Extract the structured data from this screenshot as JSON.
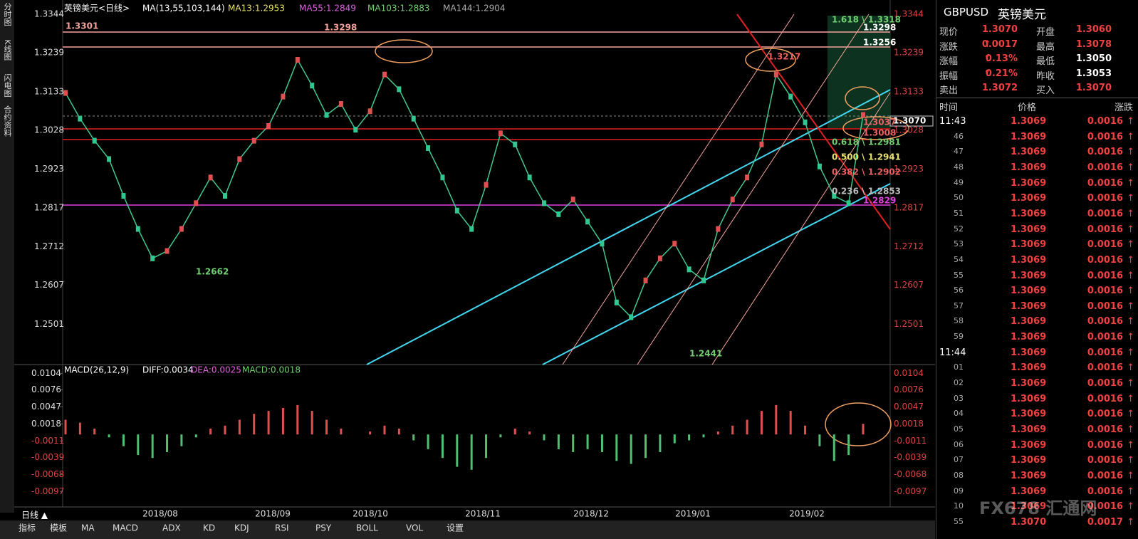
{
  "side_tabs": [
    "分时图",
    "K线图",
    "闪电图",
    "合约资料"
  ],
  "legend": {
    "symbol": "英镑美元<日线>",
    "ma": "MA(13,55,103,144)",
    "ma13": "MA13:1.2953",
    "ma55": "MA55:1.2849",
    "ma103": "MA103:1.2883",
    "ma144": "MA144:1.2904"
  },
  "price_chart": {
    "ylim": [
      1.2395,
      1.3344
    ],
    "yticks": [
      1.3344,
      1.3239,
      1.3133,
      1.3028,
      1.2923,
      1.2817,
      1.2712,
      1.2607,
      1.2501
    ],
    "closes": [
      1.313,
      1.306,
      1.3,
      1.295,
      1.285,
      1.276,
      1.268,
      1.27,
      1.276,
      1.283,
      1.29,
      1.285,
      1.295,
      1.3,
      1.304,
      1.312,
      1.322,
      1.315,
      1.307,
      1.31,
      1.303,
      1.308,
      1.318,
      1.314,
      1.306,
      1.298,
      1.29,
      1.281,
      1.276,
      1.288,
      1.302,
      1.299,
      1.29,
      1.283,
      1.28,
      1.284,
      1.278,
      1.272,
      1.256,
      1.252,
      1.262,
      1.268,
      1.272,
      1.265,
      1.262,
      1.276,
      1.284,
      1.29,
      1.299,
      1.318,
      1.312,
      1.305,
      1.293,
      1.285,
      1.283,
      1.307
    ],
    "annotations": [
      "1.3301",
      "1.3298",
      "1.2662",
      "1.2441",
      "1.3217",
      "1.618 \\ 1.3318",
      "1.3298",
      "1.3256",
      "1.3070",
      "1.3037",
      "1.3008",
      "0.618 \\ 1.2981",
      "0.500 \\ 1.2941",
      "0.382 \\ 1.2902",
      "0.236 \\ 1.2853",
      "1.2829"
    ]
  },
  "macd_chart": {
    "legend": {
      "name": "MACD(26,12,9)",
      "diff": "DIFF:0.0034",
      "dea": "DEA:0.0025",
      "macd": "MACD:0.0018"
    },
    "ylim": [
      -0.0116,
      0.0114
    ],
    "yticks": [
      0.0104,
      0.0076,
      0.0047,
      0.0018,
      -0.0011,
      -0.0039,
      -0.0068,
      -0.0097
    ],
    "histogram": [
      0.0025,
      0.002,
      0.001,
      -0.0005,
      -0.002,
      -0.0035,
      -0.004,
      -0.003,
      -0.002,
      -0.0005,
      0.001,
      0.0015,
      0.0025,
      0.0035,
      0.004,
      0.0045,
      0.005,
      0.004,
      0.0025,
      0.001,
      0.0,
      0.0005,
      0.0015,
      0.001,
      -0.001,
      -0.0025,
      -0.004,
      -0.0055,
      -0.006,
      -0.004,
      -0.0005,
      0.001,
      0.0005,
      -0.001,
      -0.0025,
      -0.003,
      -0.0025,
      -0.003,
      -0.0045,
      -0.005,
      -0.004,
      -0.003,
      -0.0015,
      -0.001,
      -0.0005,
      0.0005,
      0.0015,
      0.0025,
      0.004,
      0.005,
      0.004,
      0.0015,
      -0.002,
      -0.0045,
      -0.0035,
      0.0018
    ]
  },
  "x_labels": [
    "2018/08",
    "2018/09",
    "2018/10",
    "2018/11",
    "2018/12",
    "2019/01",
    "2019/02"
  ],
  "bottom": {
    "period": "日线 ▲",
    "tabs": [
      "指标",
      "模板",
      "MA",
      "MACD",
      "ADX",
      "KD",
      "KDJ",
      "RSI",
      "PSY",
      "BOLL",
      "VOL",
      "设置"
    ]
  },
  "watermark": "FX678 汇通网",
  "quote": {
    "symbol": "GBPUSD",
    "name": "英镑美元",
    "rows": [
      [
        "现价",
        "1.3070",
        "开盘",
        "1.3060"
      ],
      [
        "涨跌",
        "0.0017",
        "最高",
        "1.3078"
      ],
      [
        "涨幅",
        "0.13%",
        "最低",
        "1.3050"
      ],
      [
        "振幅",
        "0.21%",
        "昨收",
        "1.3053"
      ],
      [
        "卖出",
        "1.3072",
        "买入",
        "1.3070"
      ]
    ]
  },
  "ticks": {
    "header": [
      "时间",
      "价格",
      "涨跌"
    ],
    "rows": [
      [
        "11:43",
        "1.3069",
        "0.0016"
      ],
      [
        "46",
        "1.3069",
        "0.0016"
      ],
      [
        "47",
        "1.3069",
        "0.0016"
      ],
      [
        "48",
        "1.3069",
        "0.0016"
      ],
      [
        "49",
        "1.3069",
        "0.0016"
      ],
      [
        "50",
        "1.3069",
        "0.0016"
      ],
      [
        "51",
        "1.3069",
        "0.0016"
      ],
      [
        "52",
        "1.3069",
        "0.0016"
      ],
      [
        "53",
        "1.3069",
        "0.0016"
      ],
      [
        "54",
        "1.3069",
        "0.0016"
      ],
      [
        "55",
        "1.3069",
        "0.0016"
      ],
      [
        "56",
        "1.3069",
        "0.0016"
      ],
      [
        "57",
        "1.3069",
        "0.0016"
      ],
      [
        "58",
        "1.3069",
        "0.0016"
      ],
      [
        "59",
        "1.3069",
        "0.0016"
      ],
      [
        "11:44",
        "1.3069",
        "0.0016"
      ],
      [
        "01",
        "1.3069",
        "0.0016"
      ],
      [
        "02",
        "1.3069",
        "0.0016"
      ],
      [
        "03",
        "1.3069",
        "0.0016"
      ],
      [
        "04",
        "1.3069",
        "0.0016"
      ],
      [
        "05",
        "1.3069",
        "0.0016"
      ],
      [
        "06",
        "1.3069",
        "0.0016"
      ],
      [
        "07",
        "1.3069",
        "0.0016"
      ],
      [
        "08",
        "1.3069",
        "0.0016"
      ],
      [
        "09",
        "1.3069",
        "0.0016"
      ],
      [
        "10",
        "1.3069",
        "0.0016"
      ],
      [
        "55",
        "1.3070",
        "0.0017"
      ]
    ]
  }
}
